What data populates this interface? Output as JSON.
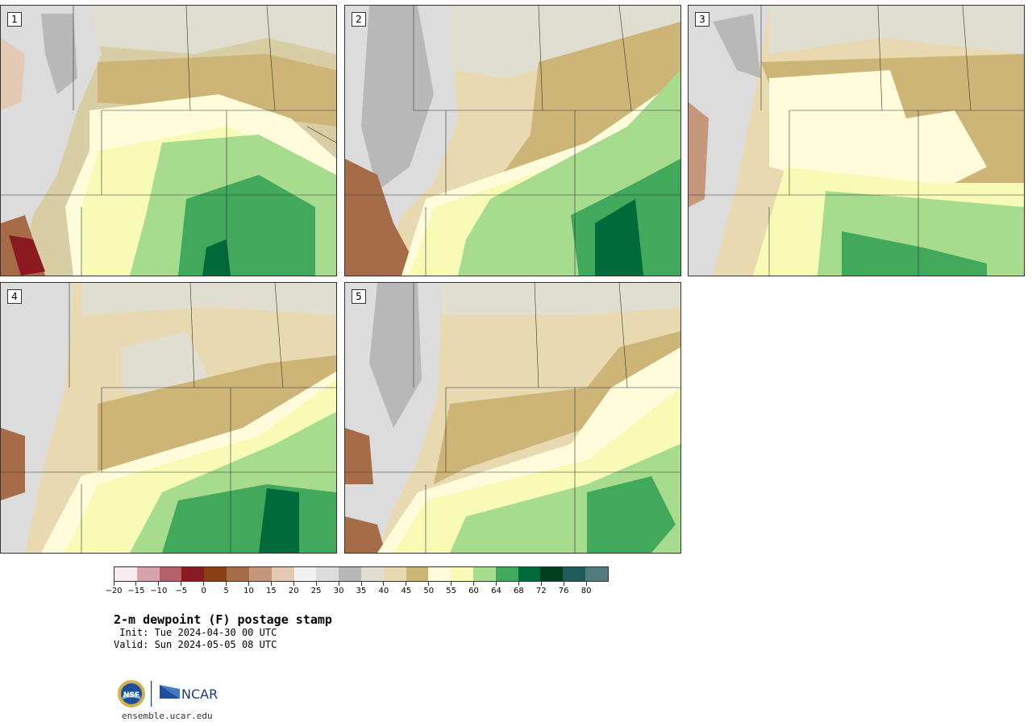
{
  "panels": [
    {
      "label": "1"
    },
    {
      "label": "2"
    },
    {
      "label": "3"
    },
    {
      "label": "4"
    },
    {
      "label": "5"
    }
  ],
  "colorbar": {
    "colors": [
      "#f6ebee",
      "#d7a3ab",
      "#b45f69",
      "#8b1a20",
      "#8b3f14",
      "#a66c48",
      "#c6987b",
      "#e4c9b5",
      "#f2f2f2",
      "#dcdcdc",
      "#b8b8b8",
      "#e0ded0",
      "#e8d9b0",
      "#cdb477",
      "#fffcdc",
      "#f7fbb6",
      "#a7dc8f",
      "#41a85c",
      "#006b3a",
      "#00401f",
      "#1f5b5c",
      "#527b80"
    ],
    "ticks": [
      "−20",
      "−15",
      "−10",
      "−5",
      "0",
      "5",
      "10",
      "15",
      "20",
      "25",
      "30",
      "35",
      "40",
      "45",
      "50",
      "55",
      "60",
      "64",
      "68",
      "72",
      "76",
      "80"
    ]
  },
  "title": "2-m dewpoint (F) postage stamp",
  "init": " Init: Tue 2024-04-30 00 UTC",
  "valid": "Valid: Sun 2024-05-05 08 UTC",
  "logo": {
    "nsf": "NSF",
    "ncar": "NCAR"
  },
  "url": "ensemble.ucar.edu"
}
